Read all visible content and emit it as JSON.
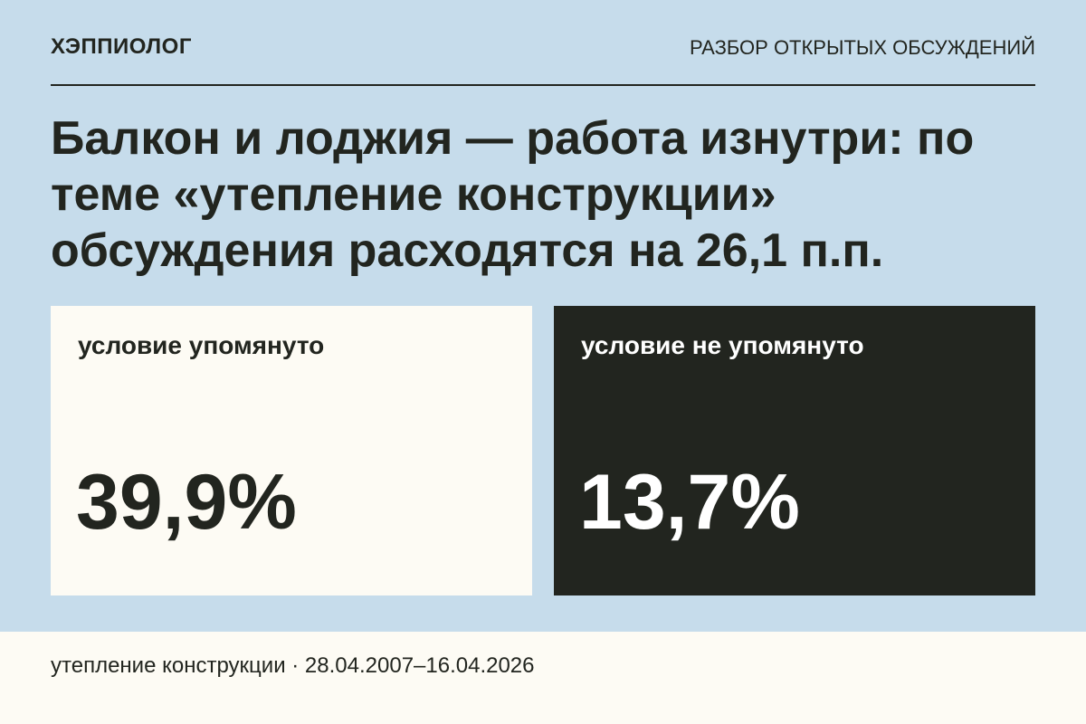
{
  "header": {
    "brand": "ХЭППИОЛОГ",
    "section": "РАЗБОР ОТКРЫТЫХ ОБСУЖДЕНИЙ"
  },
  "title": "Балкон и лоджия — работа изнутри: по теме «утепление конструкции» обсуждения расходятся на 26,1 п.п.",
  "cards": [
    {
      "label": "условие упомянуто",
      "value": "39,9%"
    },
    {
      "label": "условие не упомянуто",
      "value": "13,7%"
    }
  ],
  "footer": "утепление конструкции · 28.04.2007–16.04.2026"
}
